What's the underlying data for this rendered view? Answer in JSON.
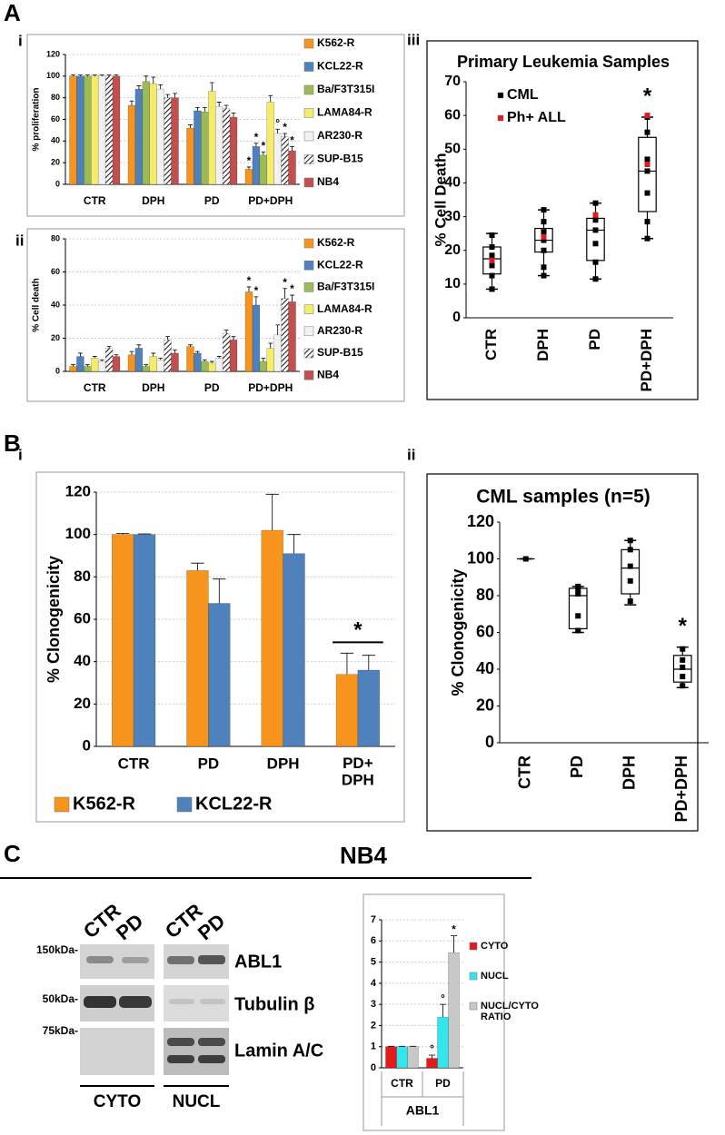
{
  "panel_labels": [
    "A",
    "i",
    "ii",
    "iii",
    "B",
    "i",
    "ii",
    "C"
  ],
  "blot": {
    "title": "NB4",
    "lanes": [
      "CTR",
      "PD",
      "CTR",
      "PD"
    ],
    "markers": [
      "150kDa-",
      "50kDa-",
      "75kDa-"
    ],
    "proteins": [
      "ABL1",
      "Tubulin β",
      "Lamin A/C"
    ],
    "fractions": [
      "CYTO",
      "NUCL"
    ]
  },
  "chart_data": [
    {
      "type": "bar",
      "ylabel": "% proliferation",
      "categories": [
        "CTR",
        "DPH",
        "PD",
        "PD+DPH"
      ],
      "ylim": [
        0,
        120
      ],
      "yticks": [
        0,
        20,
        40,
        60,
        80,
        100,
        120
      ],
      "grid": true,
      "series": [
        {
          "name": "K562-R",
          "color": "#f7941d",
          "values": [
            100,
            73,
            52,
            14
          ],
          "errors": [
            1,
            4,
            3,
            2
          ],
          "annotations": [
            null,
            null,
            null,
            "*"
          ]
        },
        {
          "name": "KCL22-R",
          "color": "#4f81bd",
          "values": [
            100,
            88,
            68,
            35
          ],
          "errors": [
            1,
            3,
            3,
            3
          ],
          "annotations": [
            null,
            null,
            null,
            "*"
          ]
        },
        {
          "name": "Ba/F3T315I",
          "color": "#9bbb59",
          "values": [
            100,
            95,
            67,
            27
          ],
          "errors": [
            1,
            5,
            4,
            3
          ],
          "annotations": [
            null,
            null,
            null,
            "*"
          ]
        },
        {
          "name": "LAMA84-R",
          "color": "#f6ec6c",
          "values": [
            100,
            93,
            86,
            76
          ],
          "errors": [
            1,
            6,
            8,
            6
          ],
          "annotations": [
            null,
            null,
            null,
            null
          ]
        },
        {
          "name": "AR230-R",
          "color": "#f2f2f2",
          "values": [
            100,
            88,
            72,
            47
          ],
          "errors": [
            1,
            4,
            4,
            4
          ],
          "annotations": [
            null,
            null,
            null,
            "°"
          ]
        },
        {
          "name": "SUP-B15",
          "color": "#222222",
          "pattern": "hatch",
          "values": [
            100,
            80,
            70,
            44
          ],
          "errors": [
            1,
            3,
            3,
            3
          ],
          "annotations": [
            null,
            null,
            null,
            "*"
          ]
        },
        {
          "name": "NB4",
          "color": "#c0504d",
          "values": [
            100,
            80,
            62,
            31
          ],
          "errors": [
            1,
            4,
            4,
            4
          ],
          "annotations": [
            null,
            null,
            null,
            "*"
          ]
        }
      ]
    },
    {
      "type": "bar",
      "ylabel": "% Cell death",
      "categories": [
        "CTR",
        "DPH",
        "PD",
        "PD+DPH"
      ],
      "ylim": [
        0,
        80
      ],
      "yticks": [
        0,
        20,
        40,
        60,
        80
      ],
      "grid": true,
      "series": [
        {
          "name": "K562-R",
          "color": "#f7941d",
          "values": [
            3,
            10,
            15,
            48
          ],
          "errors": [
            1,
            2,
            1,
            3
          ],
          "annotations": [
            null,
            null,
            null,
            "*"
          ]
        },
        {
          "name": "KCL22-R",
          "color": "#4f81bd",
          "values": [
            9,
            14,
            11,
            40
          ],
          "errors": [
            2,
            2,
            1,
            5
          ],
          "annotations": [
            null,
            null,
            null,
            "*"
          ]
        },
        {
          "name": "Ba/F3T315I",
          "color": "#9bbb59",
          "values": [
            3,
            3,
            6,
            6
          ],
          "errors": [
            1,
            1,
            1,
            2
          ],
          "annotations": [
            null,
            null,
            null,
            null
          ]
        },
        {
          "name": "LAMA84-R",
          "color": "#f6ec6c",
          "values": [
            8,
            9,
            5,
            14
          ],
          "errors": [
            1,
            2,
            1,
            3
          ],
          "annotations": [
            null,
            null,
            null,
            null
          ]
        },
        {
          "name": "AR230-R",
          "color": "#f2f2f2",
          "values": [
            6,
            7,
            8,
            22
          ],
          "errors": [
            1,
            1,
            1,
            6
          ],
          "annotations": [
            null,
            null,
            null,
            null
          ]
        },
        {
          "name": "SUP-B15",
          "color": "#222222",
          "pattern": "hatch",
          "values": [
            14,
            19,
            23,
            44
          ],
          "errors": [
            1,
            2,
            2,
            6
          ],
          "annotations": [
            null,
            null,
            null,
            "*"
          ]
        },
        {
          "name": "NB4",
          "color": "#c0504d",
          "values": [
            9,
            11,
            19,
            42
          ],
          "errors": [
            1,
            2,
            2,
            4
          ],
          "annotations": [
            null,
            null,
            null,
            "*"
          ]
        }
      ]
    },
    {
      "type": "box",
      "title": "Primary Leukemia Samples",
      "ylabel": "% Cell Death",
      "categories": [
        "CTR",
        "DPH",
        "PD",
        "PD+DPH"
      ],
      "ylim": [
        0,
        70
      ],
      "yticks": [
        0,
        10,
        20,
        30,
        40,
        50,
        60,
        70
      ],
      "grid": false,
      "boxes": [
        [
          8.5,
          13,
          17.5,
          21,
          25
        ],
        [
          12.5,
          19.5,
          23,
          26.5,
          32
        ],
        [
          11.5,
          17,
          26,
          29.5,
          34
        ],
        [
          23.5,
          31.5,
          43.5,
          53.5,
          59.5
        ]
      ],
      "annotations": [
        null,
        null,
        null,
        "*"
      ],
      "series": [
        {
          "name": "CML",
          "color": "#000000",
          "values": [
            [
              24.5,
              21,
              18.5,
              15.5,
              12.5,
              8.5
            ],
            [
              32,
              28.5,
              25.5,
              23,
              20,
              15,
              12.5
            ],
            [
              34,
              29,
              26,
              22,
              16.5,
              11.5
            ],
            [
              59.5,
              55,
              47,
              43.5,
              37,
              28.5,
              23.5
            ]
          ]
        },
        {
          "name": "Ph+ ALL",
          "color": "#e31a1c",
          "values": [
            [
              17
            ],
            [
              24
            ],
            [
              30.5
            ],
            [
              60,
              45.5
            ]
          ]
        }
      ]
    },
    {
      "type": "bar",
      "ylabel": "% Clonogenicity",
      "categories": [
        "CTR",
        "PD",
        "DPH",
        "PD+\nDPH"
      ],
      "ylim": [
        0,
        120
      ],
      "yticks": [
        0,
        20,
        40,
        60,
        80,
        100,
        120
      ],
      "grid": true,
      "group_annotations": [
        null,
        null,
        null,
        "*"
      ],
      "series": [
        {
          "name": "K562-R",
          "color": "#f7941d",
          "values": [
            100,
            83,
            102,
            34
          ],
          "errors": [
            0.5,
            3.5,
            17,
            10
          ]
        },
        {
          "name": "KCL22-R",
          "color": "#4f81bd",
          "values": [
            100,
            67.5,
            91,
            36
          ],
          "errors": [
            0.3,
            11.5,
            9,
            7
          ]
        }
      ]
    },
    {
      "type": "box",
      "title": "CML samples (n=5)",
      "ylabel": "% Clonogenicity",
      "categories": [
        "CTR",
        "PD",
        "DPH",
        "PD+DPH"
      ],
      "ylim": [
        0,
        120
      ],
      "yticks": [
        0,
        20,
        40,
        60,
        80,
        100,
        120
      ],
      "grid": false,
      "boxes": [
        [
          100,
          100,
          100,
          100,
          100
        ],
        [
          60,
          62,
          80,
          84,
          85
        ],
        [
          75,
          81,
          95,
          105,
          110
        ],
        [
          30,
          33,
          40,
          47.5,
          52
        ]
      ],
      "annotations": [
        null,
        null,
        null,
        "*"
      ],
      "series": [
        {
          "color": "#000000",
          "values": [
            [
              100
            ],
            [
              85,
              83,
              81,
              69,
              61
            ],
            [
              110,
              105,
              96,
              88,
              77
            ],
            [
              51,
              45,
              41,
              36,
              31
            ]
          ]
        }
      ]
    },
    {
      "type": "bar",
      "xlabel": "ABL1",
      "categories": [
        "CTR",
        "PD"
      ],
      "ylim": [
        0,
        7
      ],
      "yticks": [
        0,
        1,
        2,
        3,
        4,
        5,
        6,
        7
      ],
      "grid": true,
      "series": [
        {
          "name": "CYTO",
          "color": "#e41a1c",
          "values": [
            1,
            0.45
          ],
          "errors": [
            0.02,
            0.15
          ],
          "annotations": [
            null,
            "°"
          ]
        },
        {
          "name": "NUCL",
          "color": "#33e6ee",
          "values": [
            1,
            2.4
          ],
          "errors": [
            0.02,
            0.6
          ],
          "annotations": [
            null,
            "°"
          ]
        },
        {
          "name": "NUCL/CYTO\nRATIO",
          "color": "#c8c8c8",
          "values": [
            1,
            5.45
          ],
          "errors": [
            0.02,
            0.8
          ],
          "annotations": [
            null,
            "*"
          ]
        }
      ]
    }
  ]
}
